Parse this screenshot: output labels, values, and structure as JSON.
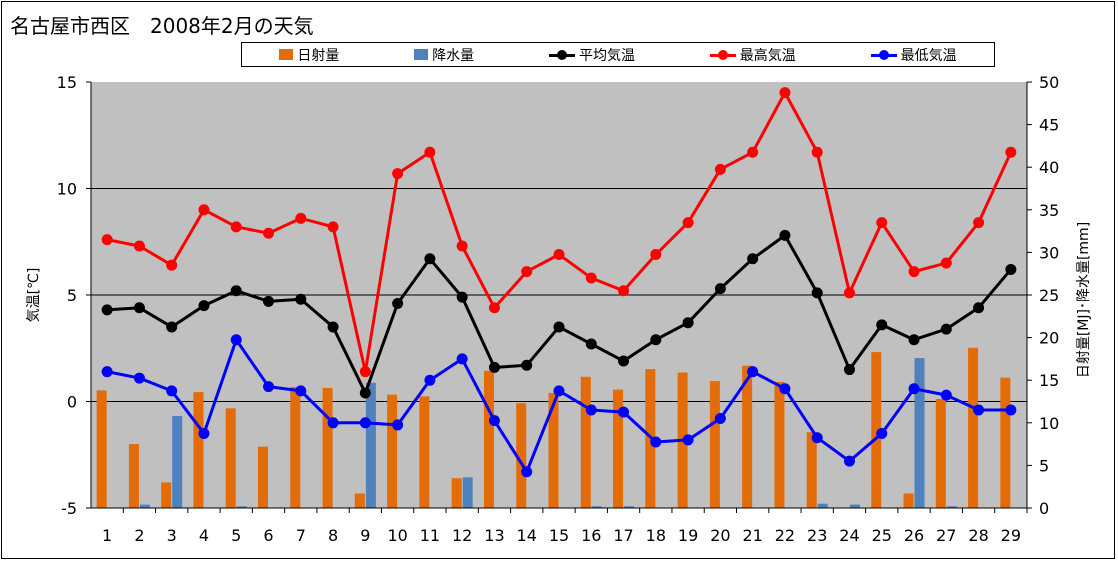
{
  "title": "名古屋市西区　2008年2月の天気",
  "colors": {
    "plot_bg": "#c0c0c0",
    "radiation": "#e36c09",
    "precip": "#4f81bd",
    "avg": "#000000",
    "max": "#ff0000",
    "min": "#0000ff"
  },
  "legend": {
    "radiation": "日射量",
    "precip": "降水量",
    "avg": "平均気温",
    "max": "最高気温",
    "min": "最低気温"
  },
  "chart_data": {
    "type": "bar+line",
    "title": "名古屋市西区　2008年2月の天気",
    "x": [
      "1",
      "2",
      "3",
      "4",
      "5",
      "6",
      "7",
      "8",
      "9",
      "10",
      "11",
      "12",
      "13",
      "14",
      "15",
      "16",
      "17",
      "18",
      "19",
      "20",
      "21",
      "22",
      "23",
      "24",
      "25",
      "26",
      "27",
      "28",
      "29"
    ],
    "ylabel_left": "気温[℃]",
    "ylabel_right": "日射量[MJ]･降水量[mm]",
    "ylim_left": [
      -5,
      15
    ],
    "ylim_right": [
      0,
      50
    ],
    "yticks_left": [
      "15",
      "10",
      "5",
      "0",
      "-5"
    ],
    "yticks_right": [
      "50",
      "45",
      "40",
      "35",
      "30",
      "25",
      "20",
      "15",
      "10",
      "5",
      "0"
    ],
    "gridlines_left": [
      10,
      5,
      0
    ],
    "legend_position": "top",
    "series": [
      {
        "name": "日射量",
        "kind": "bar",
        "axis": "right",
        "values": [
          13.8,
          7.5,
          3.0,
          13.6,
          11.7,
          7.2,
          14.2,
          14.1,
          1.7,
          13.3,
          13.1,
          3.5,
          16.1,
          12.3,
          13.5,
          15.4,
          13.9,
          16.3,
          15.9,
          14.9,
          16.7,
          14.8,
          8.9,
          0,
          18.3,
          1.7,
          12.8,
          18.8,
          15.3
        ]
      },
      {
        "name": "降水量",
        "kind": "bar",
        "axis": "right",
        "values": [
          0,
          0.4,
          10.8,
          0,
          0.2,
          0,
          0,
          0,
          14.7,
          0,
          0,
          3.6,
          0,
          0,
          0,
          0.2,
          0.2,
          0,
          0,
          0,
          0,
          0,
          0.5,
          0.4,
          0,
          17.6,
          0.2,
          0,
          0
        ]
      },
      {
        "name": "平均気温",
        "kind": "line",
        "axis": "left",
        "values": [
          4.3,
          4.4,
          3.5,
          4.5,
          5.2,
          4.7,
          4.8,
          3.5,
          0.4,
          4.6,
          6.7,
          4.9,
          1.6,
          1.7,
          3.5,
          2.7,
          1.9,
          2.9,
          3.7,
          5.3,
          6.7,
          7.8,
          5.1,
          1.5,
          3.6,
          2.9,
          3.4,
          4.4,
          6.2
        ]
      },
      {
        "name": "最高気温",
        "kind": "line",
        "axis": "left",
        "values": [
          7.6,
          7.3,
          6.4,
          9.0,
          8.2,
          7.9,
          8.6,
          8.2,
          1.4,
          10.7,
          11.7,
          7.3,
          4.4,
          6.1,
          6.9,
          5.8,
          5.2,
          6.9,
          8.4,
          10.9,
          11.7,
          14.5,
          11.7,
          5.1,
          8.4,
          6.1,
          6.5,
          8.4,
          11.7
        ]
      },
      {
        "name": "最低気温",
        "kind": "line",
        "axis": "left",
        "values": [
          1.4,
          1.1,
          0.5,
          -1.5,
          2.9,
          0.7,
          0.5,
          -1.0,
          -1.0,
          -1.1,
          1.0,
          2.0,
          -0.9,
          -3.3,
          0.5,
          -0.4,
          -0.5,
          -1.9,
          -1.8,
          -0.8,
          1.4,
          0.6,
          -1.7,
          -2.8,
          -1.5,
          0.6,
          0.3,
          -0.4,
          -0.4
        ]
      }
    ]
  }
}
